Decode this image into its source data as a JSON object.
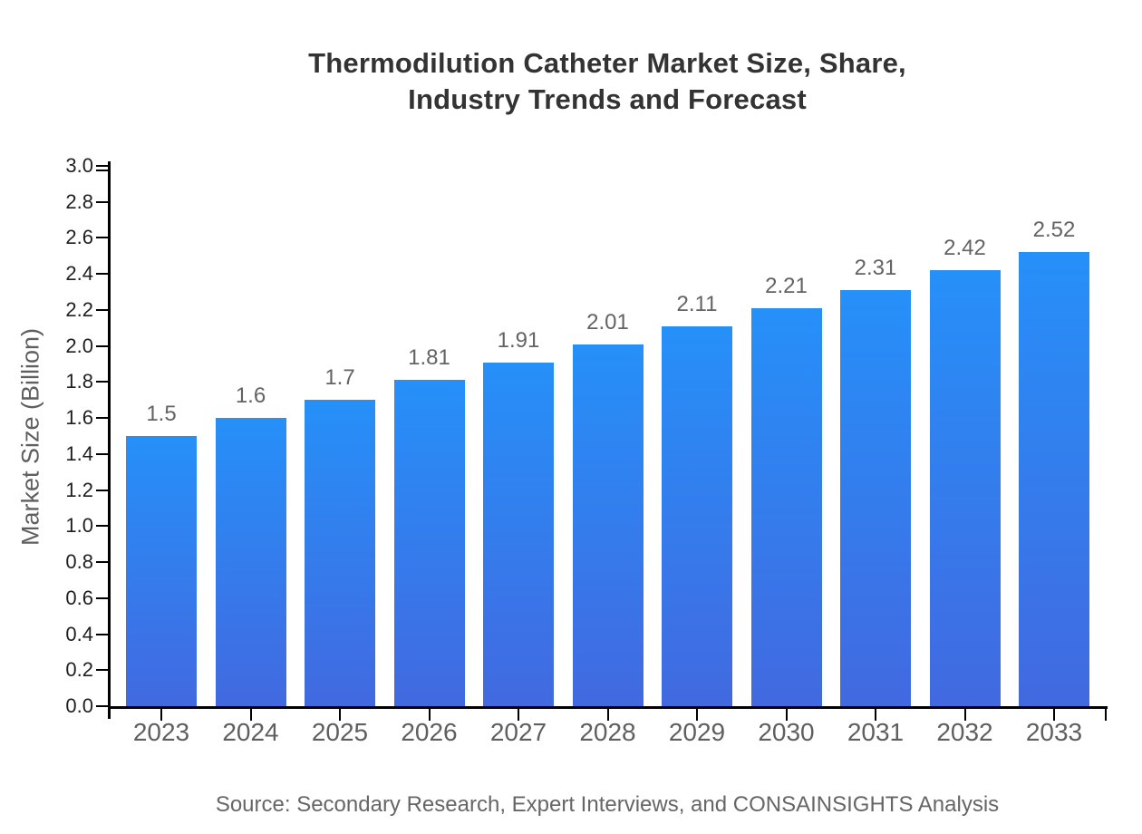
{
  "title": {
    "line1": "Thermodilution Catheter Market Size, Share,",
    "line2": "Industry Trends and Forecast"
  },
  "source_note": "Source: Secondary Research, Expert Interviews, and CONSAINSIGHTS Analysis",
  "chart_data": {
    "type": "bar",
    "title": "Thermodilution Catheter Market Size, Share, Industry Trends and Forecast",
    "xlabel": "",
    "ylabel": "Market Size (Billion)",
    "categories": [
      "2023",
      "2024",
      "2025",
      "2026",
      "2027",
      "2028",
      "2029",
      "2030",
      "2031",
      "2032",
      "2033"
    ],
    "values": [
      1.5,
      1.6,
      1.7,
      1.81,
      1.91,
      2.01,
      2.11,
      2.21,
      2.31,
      2.42,
      2.52
    ],
    "value_labels": [
      "1.5",
      "1.6",
      "1.7",
      "1.81",
      "1.91",
      "2.01",
      "2.11",
      "2.21",
      "2.31",
      "2.42",
      "2.52"
    ],
    "ylim": [
      0.0,
      3.0
    ],
    "ytick_step": 0.2,
    "ytick_labels": [
      "0.0",
      "0.2",
      "0.4",
      "0.6",
      "0.8",
      "1.0",
      "1.2",
      "1.4",
      "1.6",
      "1.8",
      "2.0",
      "2.2",
      "2.4",
      "2.6",
      "2.8",
      "3.0"
    ],
    "grid": false,
    "legend": "none",
    "colors": {
      "bar_gradient_top": "#2690F9",
      "bar_gradient_bottom": "#4269E0",
      "axis": "#000000",
      "title_text": "#333333",
      "ytick_text": "#1f1f1f",
      "category_text": "#5f5f5f",
      "value_text": "#636363",
      "source_text": "#666666"
    }
  }
}
